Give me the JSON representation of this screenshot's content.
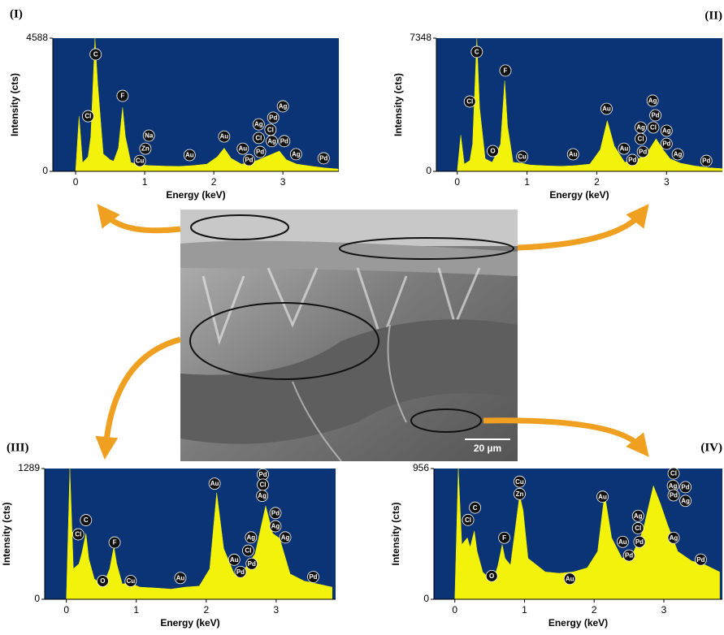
{
  "chart_data": [
    {
      "type": "area",
      "title": "(I)",
      "x_label": "Energy (keV)",
      "y_label": "Intensity (cts)",
      "color": "#f2f20a",
      "plot_background": "#0a3475",
      "xlim": [
        -0.33,
        3.81
      ],
      "xticks": [
        0,
        1,
        2,
        3
      ],
      "ylim": [
        0,
        4588
      ],
      "yticks": [
        0,
        4588
      ],
      "x": [
        -0.3,
        -0.1,
        0,
        0.05,
        0.1,
        0.18,
        0.22,
        0.28,
        0.32,
        0.4,
        0.5,
        0.55,
        0.62,
        0.68,
        0.72,
        0.8,
        0.93,
        0.98,
        1.05,
        1.3,
        1.5,
        1.7,
        1.9,
        2.05,
        2.15,
        2.25,
        2.4,
        2.55,
        2.7,
        2.85,
        2.95,
        3.05,
        3.2,
        3.4,
        3.6,
        3.8
      ],
      "values": [
        0,
        0,
        0,
        1900,
        300,
        500,
        1200,
        4588,
        3000,
        600,
        400,
        350,
        800,
        2200,
        1200,
        300,
        250,
        220,
        200,
        180,
        170,
        200,
        250,
        500,
        800,
        450,
        250,
        300,
        450,
        600,
        700,
        400,
        250,
        180,
        120,
        80
      ],
      "annotations": [
        {
          "text": "C",
          "x": 0.29,
          "y": 4030
        },
        {
          "text": "Cl",
          "x": 0.18,
          "y": 1900
        },
        {
          "text": "F",
          "x": 0.68,
          "y": 2600
        },
        {
          "text": "Na",
          "x": 1.06,
          "y": 1230
        },
        {
          "text": "Zn",
          "x": 1.01,
          "y": 780
        },
        {
          "text": "Cu",
          "x": 0.93,
          "y": 360
        },
        {
          "text": "Au",
          "x": 1.65,
          "y": 560
        },
        {
          "text": "Au",
          "x": 2.15,
          "y": 1200
        },
        {
          "text": "Au",
          "x": 2.42,
          "y": 780
        },
        {
          "text": "Pd",
          "x": 2.51,
          "y": 390
        },
        {
          "text": "Ag",
          "x": 3.0,
          "y": 2240
        },
        {
          "text": "Pd",
          "x": 2.86,
          "y": 1850
        },
        {
          "text": "Ag",
          "x": 2.65,
          "y": 1620
        },
        {
          "text": "Cl",
          "x": 2.82,
          "y": 1430
        },
        {
          "text": "Cl",
          "x": 2.65,
          "y": 1150
        },
        {
          "text": "Ag",
          "x": 2.84,
          "y": 1040
        },
        {
          "text": "Pd",
          "x": 3.02,
          "y": 1040
        },
        {
          "text": "Pd",
          "x": 2.67,
          "y": 670
        },
        {
          "text": "Ag",
          "x": 3.19,
          "y": 590
        },
        {
          "text": "Pd",
          "x": 3.59,
          "y": 450
        }
      ]
    },
    {
      "type": "area",
      "title": "(II)",
      "x_label": "Energy (keV)",
      "y_label": "Intensity (cts)",
      "color": "#f2f20a",
      "plot_background": "#0a3475",
      "xlim": [
        -0.3,
        3.8
      ],
      "xticks": [
        0,
        1,
        2,
        3
      ],
      "ylim": [
        0,
        7348
      ],
      "yticks": [
        0,
        7348
      ],
      "x": [
        -0.3,
        -0.1,
        0,
        0.05,
        0.1,
        0.18,
        0.22,
        0.28,
        0.32,
        0.4,
        0.5,
        0.55,
        0.62,
        0.68,
        0.72,
        0.8,
        0.93,
        0.98,
        1.05,
        1.3,
        1.5,
        1.7,
        1.9,
        2.05,
        2.15,
        2.25,
        2.4,
        2.55,
        2.7,
        2.85,
        2.95,
        3.05,
        3.2,
        3.4,
        3.6,
        3.8
      ],
      "values": [
        0,
        0,
        0,
        2000,
        400,
        600,
        1500,
        7348,
        3500,
        700,
        500,
        900,
        1500,
        5000,
        2500,
        500,
        450,
        400,
        350,
        300,
        280,
        320,
        400,
        1200,
        2800,
        1400,
        500,
        600,
        900,
        1800,
        1200,
        700,
        450,
        300,
        200,
        150
      ],
      "annotations": [
        {
          "text": "C",
          "x": 0.28,
          "y": 6590
        },
        {
          "text": "Cl",
          "x": 0.18,
          "y": 3850
        },
        {
          "text": "F",
          "x": 0.69,
          "y": 5560
        },
        {
          "text": "O",
          "x": 0.51,
          "y": 1120
        },
        {
          "text": "Cu",
          "x": 0.93,
          "y": 810
        },
        {
          "text": "Au",
          "x": 1.66,
          "y": 940
        },
        {
          "text": "Au",
          "x": 2.14,
          "y": 3450
        },
        {
          "text": "Ag",
          "x": 2.8,
          "y": 3900
        },
        {
          "text": "Pd",
          "x": 2.84,
          "y": 3090
        },
        {
          "text": "Ag",
          "x": 2.63,
          "y": 2420
        },
        {
          "text": "Cl",
          "x": 2.81,
          "y": 2420
        },
        {
          "text": "Ag",
          "x": 3.0,
          "y": 2240
        },
        {
          "text": "Cl",
          "x": 2.63,
          "y": 1790
        },
        {
          "text": "Pd",
          "x": 3.0,
          "y": 1520
        },
        {
          "text": "Au",
          "x": 2.39,
          "y": 1250
        },
        {
          "text": "Pd",
          "x": 2.66,
          "y": 1080
        },
        {
          "text": "Pd",
          "x": 2.51,
          "y": 630
        },
        {
          "text": "Ag",
          "x": 3.16,
          "y": 940
        },
        {
          "text": "Pd",
          "x": 3.57,
          "y": 580
        }
      ]
    },
    {
      "type": "area",
      "title": "(III)",
      "x_label": "Energy (keV)",
      "y_label": "Intensity (cts)",
      "color": "#f2f20a",
      "plot_background": "#0a3475",
      "xlim": [
        -0.31,
        3.85
      ],
      "xticks": [
        0,
        1,
        2,
        3
      ],
      "ylim": [
        0,
        1289
      ],
      "yticks": [
        0,
        1289
      ],
      "x": [
        -0.3,
        -0.1,
        0,
        0.05,
        0.1,
        0.18,
        0.22,
        0.28,
        0.32,
        0.4,
        0.5,
        0.55,
        0.62,
        0.68,
        0.72,
        0.8,
        0.93,
        0.98,
        1.05,
        1.3,
        1.5,
        1.7,
        1.9,
        2.05,
        2.15,
        2.25,
        2.4,
        2.55,
        2.7,
        2.85,
        2.95,
        3.05,
        3.2,
        3.4,
        3.6,
        3.8
      ],
      "values": [
        0,
        0,
        0,
        1289,
        300,
        350,
        450,
        650,
        400,
        200,
        150,
        180,
        300,
        520,
        350,
        150,
        170,
        140,
        120,
        110,
        100,
        120,
        130,
        300,
        1050,
        500,
        250,
        300,
        450,
        920,
        650,
        600,
        250,
        180,
        150,
        120
      ],
      "annotations": [
        {
          "text": "C",
          "x": 0.28,
          "y": 780
        },
        {
          "text": "Cl",
          "x": 0.17,
          "y": 640
        },
        {
          "text": "F",
          "x": 0.69,
          "y": 560
        },
        {
          "text": "O",
          "x": 0.52,
          "y": 180
        },
        {
          "text": "Cu",
          "x": 0.92,
          "y": 180
        },
        {
          "text": "Au",
          "x": 1.63,
          "y": 210
        },
        {
          "text": "Au",
          "x": 2.12,
          "y": 1140
        },
        {
          "text": "Pd",
          "x": 2.81,
          "y": 1230
        },
        {
          "text": "Cl",
          "x": 2.81,
          "y": 1130
        },
        {
          "text": "Ag",
          "x": 2.8,
          "y": 1020
        },
        {
          "text": "Pd",
          "x": 2.99,
          "y": 850
        },
        {
          "text": "Ag",
          "x": 2.99,
          "y": 720
        },
        {
          "text": "Ag",
          "x": 3.13,
          "y": 610
        },
        {
          "text": "Ag",
          "x": 2.64,
          "y": 610
        },
        {
          "text": "Cl",
          "x": 2.6,
          "y": 480
        },
        {
          "text": "Au",
          "x": 2.4,
          "y": 390
        },
        {
          "text": "Pd",
          "x": 2.65,
          "y": 350
        },
        {
          "text": "Pd",
          "x": 2.49,
          "y": 270
        },
        {
          "text": "Pd",
          "x": 3.53,
          "y": 220
        }
      ]
    },
    {
      "type": "area",
      "title": "(IV)",
      "x_label": "Energy (keV)",
      "y_label": "Intensity (cts)",
      "color": "#f2f20a",
      "plot_background": "#0a3475",
      "xlim": [
        -0.3,
        3.84
      ],
      "xticks": [
        0,
        1,
        2,
        3
      ],
      "ylim": [
        0,
        956
      ],
      "yticks": [
        0,
        956
      ],
      "x": [
        -0.3,
        -0.1,
        0,
        0.05,
        0.1,
        0.18,
        0.22,
        0.28,
        0.32,
        0.4,
        0.5,
        0.55,
        0.62,
        0.68,
        0.72,
        0.8,
        0.93,
        0.98,
        1.05,
        1.3,
        1.5,
        1.7,
        1.9,
        2.05,
        2.15,
        2.25,
        2.4,
        2.55,
        2.7,
        2.85,
        2.95,
        3.05,
        3.2,
        3.4,
        3.6,
        3.8
      ],
      "values": [
        0,
        0,
        0,
        956,
        400,
        450,
        380,
        500,
        350,
        200,
        150,
        130,
        250,
        400,
        300,
        250,
        760,
        650,
        300,
        200,
        190,
        200,
        230,
        350,
        770,
        450,
        300,
        330,
        500,
        830,
        700,
        550,
        350,
        280,
        250,
        200
      ],
      "annotations": [
        {
          "text": "Cl",
          "x": 0.19,
          "y": 580
        },
        {
          "text": "C",
          "x": 0.29,
          "y": 670
        },
        {
          "text": "F",
          "x": 0.71,
          "y": 450
        },
        {
          "text": "O",
          "x": 0.53,
          "y": 170
        },
        {
          "text": "Cu",
          "x": 0.93,
          "y": 860
        },
        {
          "text": "Zn",
          "x": 0.93,
          "y": 770
        },
        {
          "text": "Au",
          "x": 1.65,
          "y": 150
        },
        {
          "text": "Au",
          "x": 2.12,
          "y": 750
        },
        {
          "text": "Cl",
          "x": 3.14,
          "y": 920
        },
        {
          "text": "Ag",
          "x": 3.13,
          "y": 830
        },
        {
          "text": "Pd",
          "x": 3.31,
          "y": 820
        },
        {
          "text": "Pd",
          "x": 3.14,
          "y": 760
        },
        {
          "text": "Ag",
          "x": 3.31,
          "y": 720
        },
        {
          "text": "Ag",
          "x": 2.63,
          "y": 610
        },
        {
          "text": "Cl",
          "x": 2.63,
          "y": 520
        },
        {
          "text": "Au",
          "x": 2.41,
          "y": 420
        },
        {
          "text": "Pd",
          "x": 2.65,
          "y": 420
        },
        {
          "text": "Pd",
          "x": 2.5,
          "y": 320
        },
        {
          "text": "Ag",
          "x": 3.14,
          "y": 450
        },
        {
          "text": "Pd",
          "x": 3.53,
          "y": 290
        }
      ]
    }
  ],
  "sem_image": {
    "scale_bar": "20 µm"
  }
}
